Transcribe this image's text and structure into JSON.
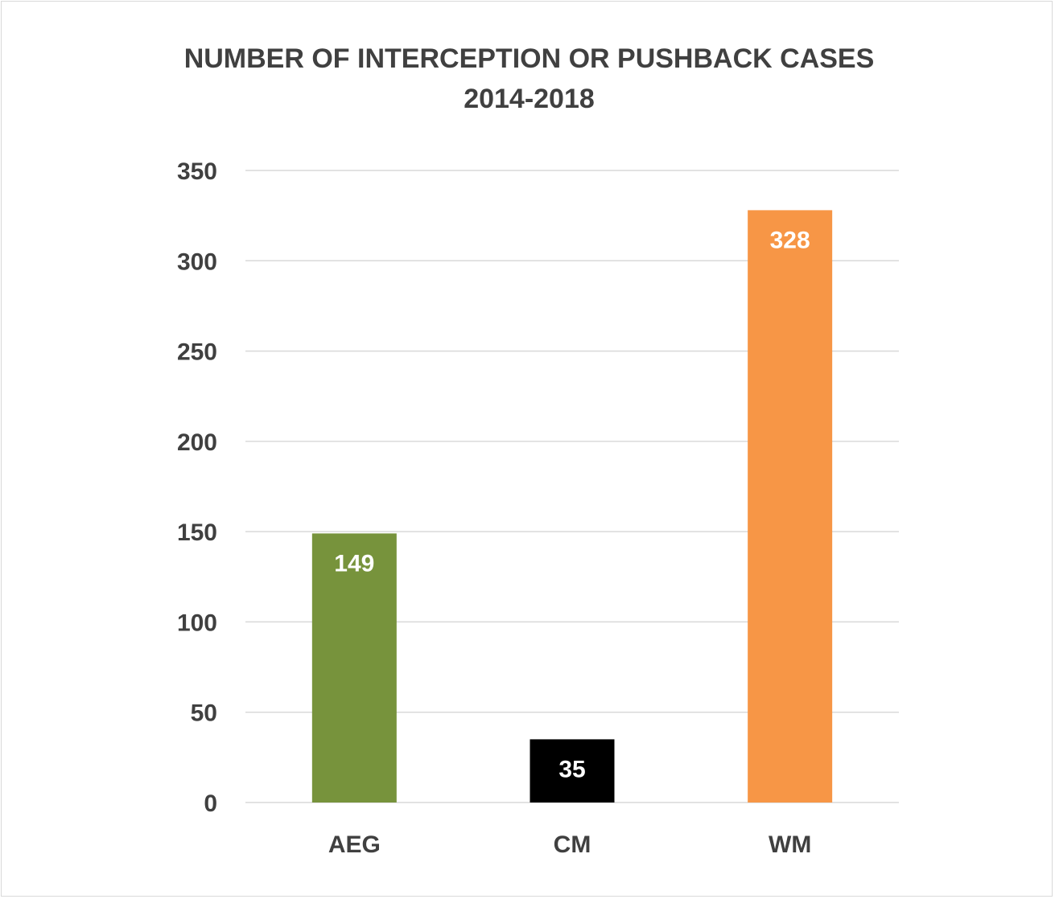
{
  "chart_data": {
    "type": "bar",
    "title": "NUMBER OF INTERCEPTION OR PUSHBACK CASES",
    "subtitle": "2014-2018",
    "categories": [
      "AEG",
      "CM",
      "WM"
    ],
    "values": [
      149,
      35,
      328
    ],
    "colors": [
      "#77933c",
      "#000000",
      "#f79646"
    ],
    "data_labels": [
      "149",
      "35",
      "328"
    ],
    "ylim": [
      0,
      350
    ],
    "yticks": [
      0,
      50,
      100,
      150,
      200,
      250,
      300,
      350
    ],
    "grid": true,
    "legend": "none",
    "gridline_color": "#d9d9d9",
    "text_color": "#404040"
  }
}
